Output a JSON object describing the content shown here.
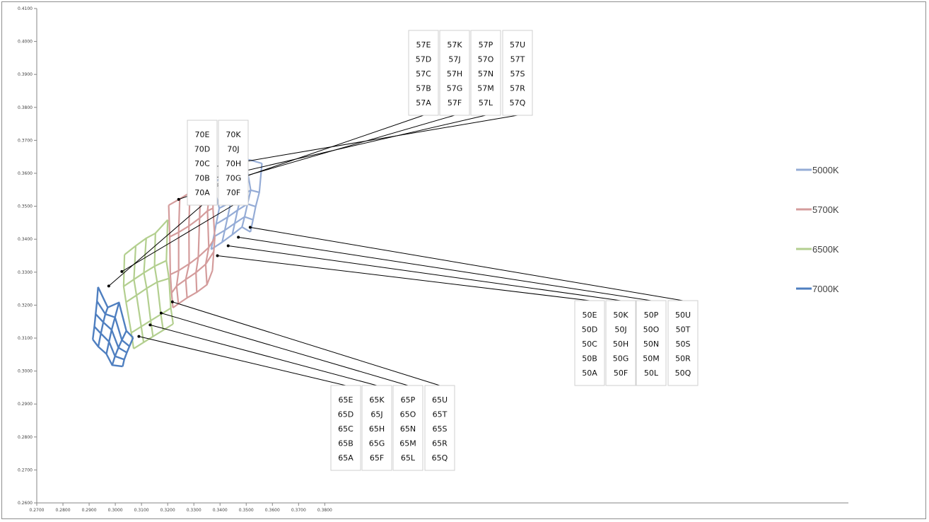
{
  "chart_data": {
    "type": "scatter",
    "title": "",
    "xlabel": "",
    "ylabel": "",
    "xlim": [
      0.27,
      0.58
    ],
    "ylim": [
      0.26,
      0.41
    ],
    "x_ticks": [
      "0.2700",
      "0.2800",
      "0.2900",
      "0.3000",
      "0.3100",
      "0.3200",
      "0.3300",
      "0.3400",
      "0.3500",
      "0.3600",
      "0.3700",
      "0.3800"
    ],
    "y_ticks": [
      "0.2600",
      "0.2700",
      "0.2800",
      "0.2900",
      "0.3000",
      "0.3100",
      "0.3200",
      "0.3300",
      "0.3400",
      "0.3500",
      "0.3600",
      "0.3700",
      "0.3800",
      "0.3900",
      "0.4000",
      "0.4100"
    ],
    "grid": false,
    "legend_position": "right",
    "series": [
      {
        "name": "5000K",
        "color": "#95acd6",
        "grid_nodes": [
          [
            [
              0.3366,
              0.3369
            ],
            [
              0.3408,
              0.3391
            ],
            [
              0.3447,
              0.3414
            ],
            [
              0.3484,
              0.3437
            ],
            [
              0.3516,
              0.3422
            ]
          ],
          [
            [
              0.3376,
              0.3407
            ],
            [
              0.3418,
              0.3427
            ],
            [
              0.3456,
              0.3448
            ],
            [
              0.3494,
              0.3468
            ],
            [
              0.3526,
              0.3459
            ]
          ],
          [
            [
              0.3385,
              0.3446
            ],
            [
              0.3429,
              0.3467
            ],
            [
              0.3467,
              0.3488
            ],
            [
              0.3505,
              0.3507
            ],
            [
              0.3536,
              0.3499
            ]
          ],
          [
            [
              0.3397,
              0.3494
            ],
            [
              0.3441,
              0.3512
            ],
            [
              0.348,
              0.353
            ],
            [
              0.3517,
              0.3549
            ],
            [
              0.355,
              0.3542
            ]
          ],
          [
            [
              0.3375,
              0.3568
            ],
            [
              0.3414,
              0.3595
            ],
            [
              0.3453,
              0.3619
            ],
            [
              0.3497,
              0.3644
            ],
            [
              0.356,
              0.363
            ]
          ]
        ]
      },
      {
        "name": "5700K",
        "color": "#d49c9c",
        "grid_nodes": [
          [
            [
              0.322,
              0.3192
            ],
            [
              0.3241,
              0.3204
            ],
            [
              0.3274,
              0.3222
            ],
            [
              0.3311,
              0.3239
            ],
            [
              0.335,
              0.3262
            ],
            [
              0.3371,
              0.3305
            ]
          ],
          [
            [
              0.3215,
              0.3237
            ],
            [
              0.3234,
              0.3258
            ],
            [
              0.3269,
              0.3278
            ],
            [
              0.3308,
              0.3299
            ],
            [
              0.3345,
              0.3324
            ],
            [
              0.3376,
              0.3362
            ]
          ],
          [
            [
              0.321,
              0.3293
            ],
            [
              0.3242,
              0.3305
            ],
            [
              0.3282,
              0.3325
            ],
            [
              0.3317,
              0.3346
            ],
            [
              0.3357,
              0.3375
            ],
            [
              0.338,
              0.3404
            ]
          ],
          [
            [
              0.3208,
              0.3407
            ],
            [
              0.3242,
              0.3421
            ],
            [
              0.3281,
              0.344
            ],
            [
              0.3322,
              0.3464
            ],
            [
              0.3352,
              0.3486
            ],
            [
              0.3373,
              0.3494
            ]
          ],
          [
            [
              0.3204,
              0.3503
            ],
            [
              0.3246,
              0.3522
            ],
            [
              0.3285,
              0.3541
            ],
            [
              0.3326,
              0.3561
            ],
            [
              0.3366,
              0.358
            ],
            [
              0.3376,
              0.3562
            ]
          ]
        ]
      },
      {
        "name": "6500K",
        "color": "#b3cf8f",
        "grid_nodes": [
          [
            [
              0.307,
              0.3068
            ],
            [
              0.3108,
              0.3087
            ],
            [
              0.3144,
              0.3105
            ],
            [
              0.3183,
              0.3124
            ],
            [
              0.3221,
              0.3143
            ]
          ],
          [
            [
              0.3061,
              0.3116
            ],
            [
              0.3099,
              0.3135
            ],
            [
              0.3135,
              0.3153
            ],
            [
              0.3174,
              0.3172
            ],
            [
              0.3212,
              0.3191
            ]
          ],
          [
            [
              0.3041,
              0.3209
            ],
            [
              0.3081,
              0.323
            ],
            [
              0.312,
              0.3251
            ],
            [
              0.316,
              0.327
            ],
            [
              0.3205,
              0.3281
            ]
          ],
          [
            [
              0.3032,
              0.3257
            ],
            [
              0.3071,
              0.3278
            ],
            [
              0.3109,
              0.3298
            ],
            [
              0.315,
              0.3318
            ],
            [
              0.3195,
              0.3335
            ]
          ],
          [
            [
              0.3035,
              0.3353
            ],
            [
              0.3078,
              0.338
            ],
            [
              0.3118,
              0.3403
            ],
            [
              0.3153,
              0.3418
            ],
            [
              0.32,
              0.3459
            ]
          ]
        ]
      },
      {
        "name": "7000K",
        "color": "#4f7fc0",
        "grid_nodes": [
          [
            [
              0.3028,
              0.3014
            ],
            [
              0.3034,
              0.3035
            ],
            [
              0.3044,
              0.3056
            ],
            [
              0.3054,
              0.3075
            ],
            [
              0.3068,
              0.3101
            ]
          ],
          [
            [
              0.2988,
              0.3018
            ],
            [
              0.2999,
              0.3045
            ],
            [
              0.3012,
              0.3071
            ],
            [
              0.3025,
              0.3094
            ],
            [
              0.3042,
              0.3122
            ]
          ],
          [
            [
              0.2966,
              0.3052
            ],
            [
              0.2976,
              0.3089
            ],
            [
              0.2986,
              0.3125
            ],
            [
              0.2999,
              0.3163
            ],
            [
              0.3014,
              0.3208
            ]
          ],
          [
            [
              0.2935,
              0.3074
            ],
            [
              0.2945,
              0.3114
            ],
            [
              0.2954,
              0.3148
            ],
            [
              0.2962,
              0.3173
            ],
            [
              0.2971,
              0.3193
            ]
          ],
          [
            [
              0.2914,
              0.3096
            ],
            [
              0.292,
              0.3135
            ],
            [
              0.2925,
              0.3173
            ],
            [
              0.293,
              0.3212
            ],
            [
              0.2934,
              0.3255
            ]
          ]
        ]
      }
    ],
    "annotations": [
      {
        "labels": [
          "70E",
          "70D",
          "70C",
          "70B",
          "70A"
        ],
        "point": [
          0.2975,
          0.3258
        ]
      },
      {
        "labels": [
          "70K",
          "70J",
          "70H",
          "70G",
          "70F"
        ],
        "point": [
          0.3025,
          0.3302
        ]
      },
      {
        "labels": [
          "57E",
          "57D",
          "57C",
          "57B",
          "57A"
        ],
        "point": [
          0.3242,
          0.3521
        ]
      },
      {
        "labels": [
          "57K",
          "57J",
          "57H",
          "57G",
          "57F"
        ],
        "point": [
          0.3285,
          0.3543
        ]
      },
      {
        "labels": [
          "57P",
          "57O",
          "57N",
          "57M",
          "57L"
        ],
        "point": [
          0.3329,
          0.3577
        ]
      },
      {
        "labels": [
          "57U",
          "57T",
          "57S",
          "57R",
          "57Q"
        ],
        "point": [
          0.3364,
          0.3618
        ]
      },
      {
        "labels": [
          "65E",
          "65D",
          "65C",
          "65B",
          "65A"
        ],
        "point": [
          0.309,
          0.3105
        ]
      },
      {
        "labels": [
          "65K",
          "65J",
          "65H",
          "65G",
          "65F"
        ],
        "point": [
          0.3133,
          0.314
        ]
      },
      {
        "labels": [
          "65P",
          "65O",
          "65N",
          "65M",
          "65L"
        ],
        "point": [
          0.3175,
          0.3176
        ]
      },
      {
        "labels": [
          "65U",
          "65T",
          "65S",
          "65R",
          "65Q"
        ],
        "point": [
          0.3218,
          0.321
        ]
      },
      {
        "labels": [
          "50E",
          "50D",
          "50C",
          "50B",
          "50A"
        ],
        "point": [
          0.339,
          0.335
        ]
      },
      {
        "labels": [
          "50K",
          "50J",
          "50H",
          "50G",
          "50F"
        ],
        "point": [
          0.3431,
          0.338
        ]
      },
      {
        "labels": [
          "50P",
          "50O",
          "50N",
          "50M",
          "50L"
        ],
        "point": [
          0.347,
          0.3406
        ]
      },
      {
        "labels": [
          "50U",
          "50T",
          "50S",
          "50R",
          "50Q"
        ],
        "point": [
          0.3515,
          0.3436
        ]
      }
    ]
  }
}
